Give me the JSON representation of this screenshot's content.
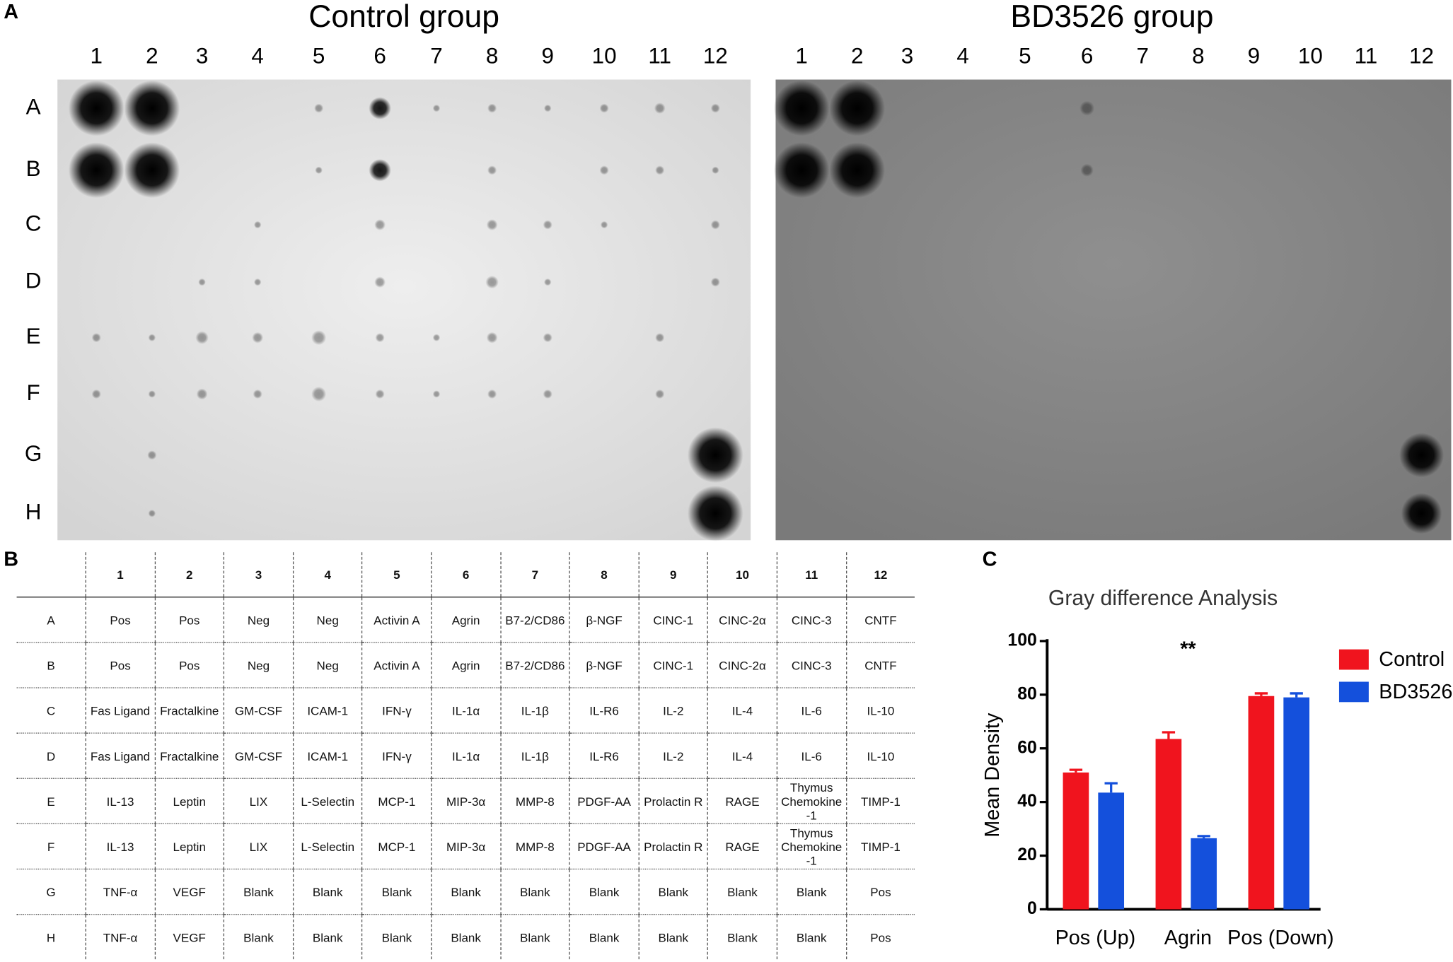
{
  "panels": [
    "A",
    "B",
    "C"
  ],
  "blots": [
    {
      "title": "Control group",
      "columns": [
        "1",
        "2",
        "3",
        "4",
        "5",
        "6",
        "7",
        "8",
        "9",
        "10",
        "11",
        "12"
      ],
      "rows": [
        "A",
        "B",
        "C",
        "D",
        "E",
        "F",
        "G",
        "H"
      ]
    },
    {
      "title": "BD3526 group",
      "columns": [
        "1",
        "2",
        "3",
        "4",
        "5",
        "6",
        "7",
        "8",
        "9",
        "10",
        "11",
        "12"
      ]
    }
  ],
  "table": {
    "columns": [
      "1",
      "2",
      "3",
      "4",
      "5",
      "6",
      "7",
      "8",
      "9",
      "10",
      "11",
      "12"
    ],
    "rows": [
      {
        "label": "A",
        "cells": [
          "Pos",
          "Pos",
          "Neg",
          "Neg",
          "Activin A",
          "Agrin",
          "B7-2/CD86",
          "β-NGF",
          "CINC-1",
          "CINC-2α",
          "CINC-3",
          "CNTF"
        ]
      },
      {
        "label": "B",
        "cells": [
          "Pos",
          "Pos",
          "Neg",
          "Neg",
          "Activin A",
          "Agrin",
          "B7-2/CD86",
          "β-NGF",
          "CINC-1",
          "CINC-2α",
          "CINC-3",
          "CNTF"
        ]
      },
      {
        "label": "C",
        "cells": [
          "Fas Ligand",
          "Fractalkine",
          "GM-CSF",
          "ICAM-1",
          "IFN-γ",
          "IL-1α",
          "IL-1β",
          "IL-R6",
          "IL-2",
          "IL-4",
          "IL-6",
          "IL-10"
        ]
      },
      {
        "label": "D",
        "cells": [
          "Fas Ligand",
          "Fractalkine",
          "GM-CSF",
          "ICAM-1",
          "IFN-γ",
          "IL-1α",
          "IL-1β",
          "IL-R6",
          "IL-2",
          "IL-4",
          "IL-6",
          "IL-10"
        ]
      },
      {
        "label": "E",
        "cells": [
          "IL-13",
          "Leptin",
          "LIX",
          "L-Selectin",
          "MCP-1",
          "MIP-3α",
          "MMP-8",
          "PDGF-AA",
          "Prolactin R",
          "RAGE",
          "Thymus Chemokine -1",
          "TIMP-1"
        ]
      },
      {
        "label": "F",
        "cells": [
          "IL-13",
          "Leptin",
          "LIX",
          "L-Selectin",
          "MCP-1",
          "MIP-3α",
          "MMP-8",
          "PDGF-AA",
          "Prolactin R",
          "RAGE",
          "Thymus Chemokine -1",
          "TIMP-1"
        ]
      },
      {
        "label": "G",
        "cells": [
          "TNF-α",
          "VEGF",
          "Blank",
          "Blank",
          "Blank",
          "Blank",
          "Blank",
          "Blank",
          "Blank",
          "Blank",
          "Blank",
          "Pos"
        ]
      },
      {
        "label": "H",
        "cells": [
          "TNF-α",
          "VEGF",
          "Blank",
          "Blank",
          "Blank",
          "Blank",
          "Blank",
          "Blank",
          "Blank",
          "Blank",
          "Blank",
          "Pos"
        ]
      }
    ]
  },
  "chart_data": {
    "type": "bar",
    "title": "Gray difference Analysis",
    "y_label": "Mean Density",
    "annotation": "**",
    "categories": [
      "Pos (Up)",
      "Agrin",
      "Pos (Down)"
    ],
    "series": [
      {
        "name": "Control",
        "color": "#f0141e",
        "values": [
          51,
          63.5,
          79.5
        ],
        "errors": [
          1,
          2.5,
          1
        ]
      },
      {
        "name": "BD3526",
        "color": "#1450dc",
        "values": [
          43.5,
          26.5,
          79
        ],
        "errors": [
          3.5,
          0.8,
          1.5
        ]
      }
    ],
    "ylim": [
      0,
      100
    ],
    "yticks": [
      0,
      20,
      40,
      60,
      80,
      100
    ],
    "legend": "right"
  }
}
